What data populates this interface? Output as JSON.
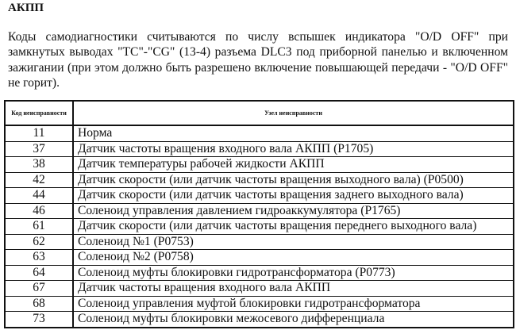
{
  "title": "АКПП",
  "paragraph": "Коды самодиагностики считываются по числу вспышек индикатора \"O/D OFF\" при замкнутых выводах \"TC\"-\"CG\" (13-4) разъема DLC3 под приборной панелью и включенном зажигании (при этом должно быть разрешено включение повышающей передачи - \"O/D OFF\" не горит).",
  "table": {
    "headers": [
      "Код неисправности",
      "Узел неисправности"
    ],
    "rows": [
      {
        "code": "11",
        "desc": "Норма"
      },
      {
        "code": "37",
        "desc": "Датчик частоты вращения входного вала АКПП (P1705)"
      },
      {
        "code": "38",
        "desc": "Датчик температуры рабочей жидкости АКПП"
      },
      {
        "code": "42",
        "desc": "Датчик скорости (или датчик частоты вращения выходного вала) (P0500)"
      },
      {
        "code": "44",
        "desc": "Датчик скорости (или датчик частоты вращения заднего выходного вала)"
      },
      {
        "code": "46",
        "desc": "Соленоид управления давлением гидроаккумулятора (P1765)"
      },
      {
        "code": "61",
        "desc": "Датчик скорости (или датчик частоты вращения переднего выходного вала)"
      },
      {
        "code": "62",
        "desc": "Соленоид №1 (P0753)"
      },
      {
        "code": "63",
        "desc": "Соленоид №2 (P0758)"
      },
      {
        "code": "64",
        "desc": "Соленоид муфты блокировки гидротрансформатора (P0773)"
      },
      {
        "code": "67",
        "desc": "Датчик частоты вращения входного вала АКПП"
      },
      {
        "code": "68",
        "desc": "Соленоид управления муфтой блокировки гидротрансформатора"
      },
      {
        "code": "73",
        "desc": "Соленоид муфты блокировки межосевого дифференциала"
      }
    ]
  }
}
